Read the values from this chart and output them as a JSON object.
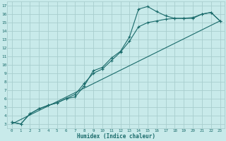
{
  "xlabel": "Humidex (Indice chaleur)",
  "background_color": "#c8eaea",
  "grid_color": "#a8cece",
  "line_color": "#1a6b6b",
  "xlim": [
    -0.5,
    23.5
  ],
  "ylim": [
    2.5,
    17.5
  ],
  "xticks": [
    0,
    1,
    2,
    3,
    4,
    5,
    6,
    7,
    8,
    9,
    10,
    11,
    12,
    13,
    14,
    15,
    16,
    17,
    18,
    19,
    20,
    21,
    22,
    23
  ],
  "yticks": [
    3,
    4,
    5,
    6,
    7,
    8,
    9,
    10,
    11,
    12,
    13,
    14,
    15,
    16,
    17
  ],
  "line1_x": [
    0,
    1,
    2,
    3,
    4,
    5,
    6,
    7,
    8,
    9,
    10,
    11,
    12,
    13,
    14,
    15,
    16,
    17,
    18,
    19,
    20,
    21,
    22,
    23
  ],
  "line1_y": [
    3.2,
    3.0,
    4.2,
    4.8,
    5.2,
    5.5,
    6.0,
    6.2,
    7.5,
    9.3,
    9.7,
    10.8,
    11.6,
    13.3,
    16.6,
    16.9,
    16.3,
    15.8,
    15.5,
    15.5,
    15.5,
    16.0,
    16.2,
    15.2
  ],
  "line2_x": [
    0,
    1,
    2,
    3,
    4,
    5,
    6,
    7,
    8,
    9,
    10,
    11,
    12,
    13,
    14,
    15,
    16,
    17,
    18,
    19,
    20,
    21,
    22,
    23
  ],
  "line2_y": [
    3.2,
    3.0,
    4.2,
    4.8,
    5.2,
    5.5,
    6.0,
    6.5,
    7.8,
    9.0,
    9.5,
    10.5,
    11.5,
    12.8,
    14.5,
    15.0,
    15.2,
    15.4,
    15.5,
    15.5,
    15.6,
    16.0,
    16.2,
    15.2
  ],
  "line3_x": [
    0,
    23
  ],
  "line3_y": [
    3.0,
    15.2
  ]
}
